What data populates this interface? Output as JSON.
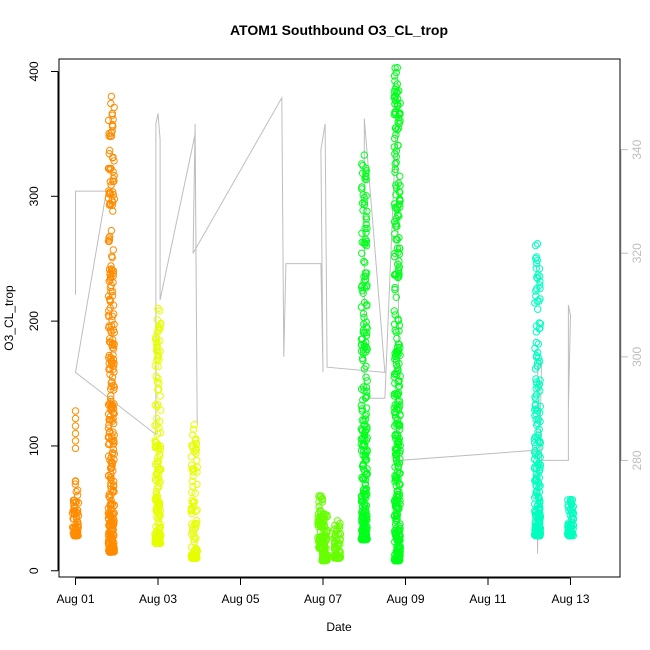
{
  "chart_data": {
    "type": "scatter",
    "title": "ATOM1 Southbound O3_CL_trop",
    "xlabel": "Date",
    "ylabel": "O3_CL_trop",
    "x_unit": "days from Aug 01",
    "xlim": [
      -0.4,
      13.2
    ],
    "ylim": [
      -5,
      410
    ],
    "y2lim": [
      257.5,
      357.5
    ],
    "x_ticks": [
      {
        "value": 0,
        "label": "Aug 01"
      },
      {
        "value": 2,
        "label": "Aug 03"
      },
      {
        "value": 4,
        "label": "Aug 05"
      },
      {
        "value": 6,
        "label": "Aug 07"
      },
      {
        "value": 8,
        "label": "Aug 09"
      },
      {
        "value": 10,
        "label": "Aug 11"
      },
      {
        "value": 12,
        "label": "Aug 13"
      }
    ],
    "y_ticks": [
      0,
      100,
      200,
      300,
      400
    ],
    "y2_ticks": [
      280,
      300,
      320,
      340
    ],
    "grid": false,
    "secondary_line_color": "#bebebe",
    "series": [
      {
        "color": "#ff8c00",
        "clusters": [
          {
            "x": 0.0,
            "ymin": 28,
            "ymax": 72,
            "outliers": [
              98,
              104,
              110,
              116,
              122,
              128
            ]
          },
          {
            "x": 0.87,
            "ymin": 15,
            "ymax": 380
          }
        ]
      },
      {
        "color": "#e6ff00",
        "clusters": [
          {
            "x": 2.0,
            "ymin": 22,
            "ymax": 210
          },
          {
            "x": 2.88,
            "ymin": 10,
            "ymax": 117
          }
        ]
      },
      {
        "color": "#66ff00",
        "clusters": [
          {
            "x": 5.95,
            "ymin": 18,
            "ymax": 60
          },
          {
            "x": 6.05,
            "ymin": 8,
            "ymax": 45
          },
          {
            "x": 6.35,
            "ymin": 10,
            "ymax": 40
          }
        ]
      },
      {
        "color": "#00ff1a",
        "clusters": [
          {
            "x": 7.0,
            "ymin": 25,
            "ymax": 333
          },
          {
            "x": 7.8,
            "ymin": 8,
            "ymax": 403
          }
        ]
      },
      {
        "color": "#00ffbf",
        "clusters": [
          {
            "x": 11.2,
            "ymin": 28,
            "ymax": 262
          },
          {
            "x": 12.0,
            "ymin": 28,
            "ymax": 57
          }
        ]
      }
    ],
    "secondary_line": [
      [
        0.0,
        312
      ],
      [
        0.0,
        332
      ],
      [
        0.75,
        332
      ],
      [
        0.0,
        297
      ],
      [
        1.95,
        285
      ],
      [
        1.95,
        345
      ],
      [
        2.0,
        347
      ],
      [
        2.05,
        342
      ],
      [
        2.05,
        311
      ],
      [
        2.9,
        343
      ],
      [
        2.95,
        287
      ],
      [
        2.9,
        345
      ],
      [
        2.85,
        320
      ],
      [
        5.0,
        350
      ],
      [
        5.05,
        300
      ],
      [
        5.1,
        318
      ],
      [
        5.95,
        318
      ],
      [
        6.0,
        297
      ],
      [
        5.95,
        340
      ],
      [
        6.05,
        345
      ],
      [
        6.1,
        298
      ],
      [
        7.5,
        297
      ],
      [
        7.0,
        346
      ],
      [
        7.0,
        292
      ],
      [
        7.5,
        292
      ],
      [
        7.8,
        350
      ],
      [
        7.85,
        280
      ],
      [
        11.2,
        282
      ],
      [
        11.2,
        262
      ],
      [
        11.3,
        299
      ],
      [
        11.2,
        298
      ],
      [
        11.3,
        280
      ],
      [
        11.95,
        280
      ],
      [
        11.95,
        310
      ],
      [
        12.0,
        308
      ],
      [
        11.95,
        290
      ]
    ]
  }
}
